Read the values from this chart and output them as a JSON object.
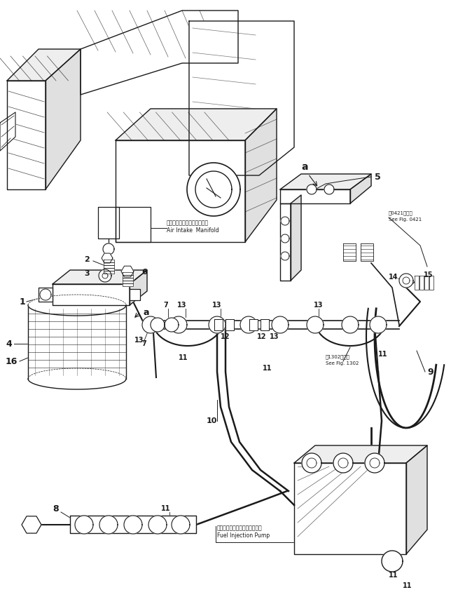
{
  "bg_color": "#ffffff",
  "lc": "#1a1a1a",
  "figsize": [
    6.44,
    8.71
  ],
  "dpi": 100,
  "labels": {
    "air_intake_jp": "エアーインテークマニホルド",
    "air_intake_en": "Air Intake  Manifold",
    "fuel_pump_jp": "フェルインジェクションポンプ",
    "fuel_pump_en": "Fuel Injection Pump",
    "see_fig1302_jp": "㄄1302図参照",
    "see_fig1302_en": "See Fig. 1302",
    "see_fig0421_jp": "㄄0421図参照",
    "see_fig0421_en": "See Fig. 0421"
  }
}
